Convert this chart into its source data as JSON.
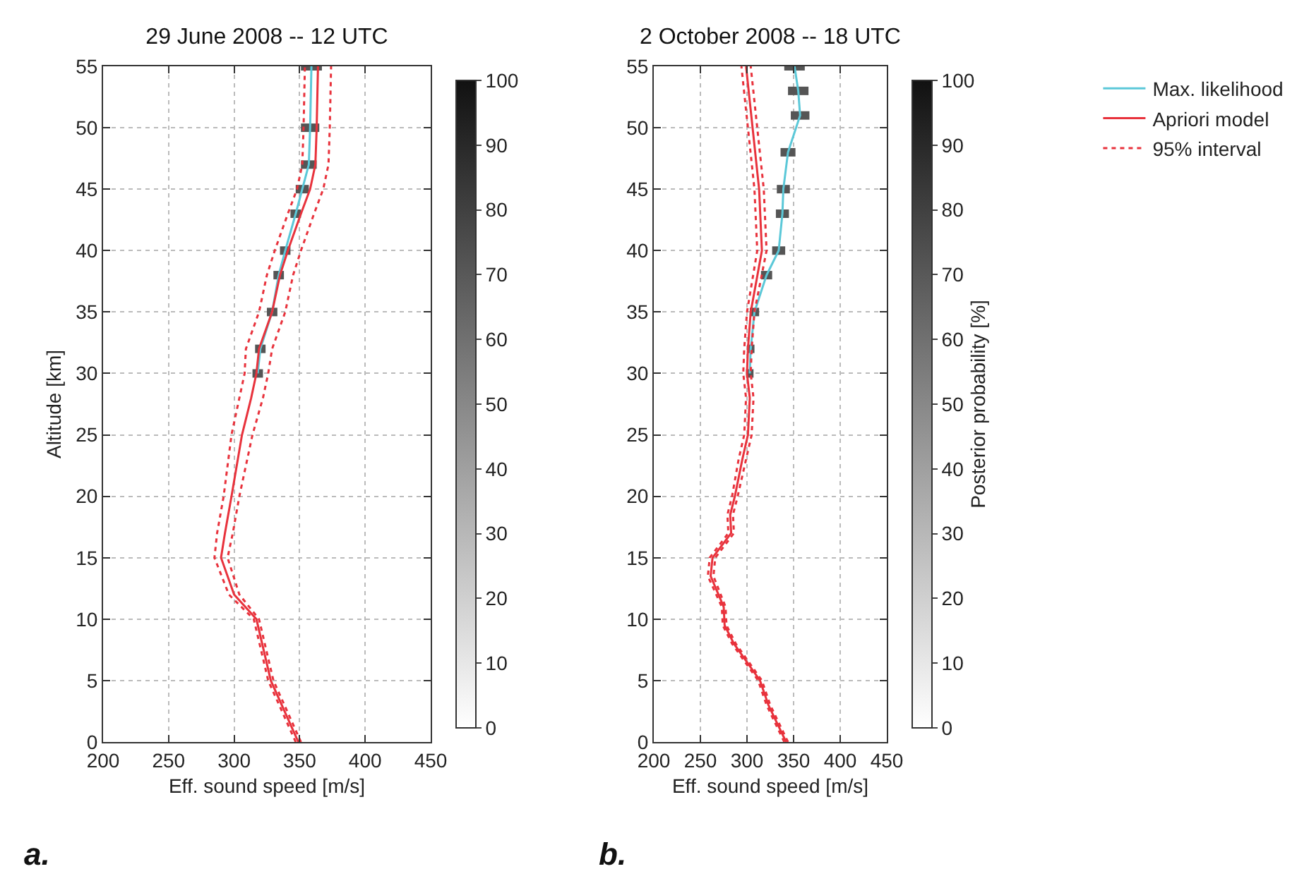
{
  "chart_data": [
    {
      "type": "line",
      "title": "29 June 2008 -- 12 UTC",
      "xlabel": "Eff. sound speed [m/s]",
      "ylabel": "Altitude [km]",
      "clim": [
        0,
        100
      ],
      "cticks": [
        0,
        10,
        20,
        30,
        40,
        50,
        60,
        70,
        80,
        90,
        100
      ],
      "xlim": [
        200,
        450
      ],
      "xticks": [
        200,
        250,
        300,
        350,
        400,
        450
      ],
      "ylim": [
        0,
        55
      ],
      "yticks": [
        0,
        5,
        10,
        15,
        20,
        25,
        30,
        35,
        40,
        45,
        50,
        55
      ],
      "grid": true,
      "legend": false,
      "annotations": [
        "a."
      ],
      "series": [
        {
          "color": "#e8323c",
          "line_style": "dotted",
          "x": [
            347,
            326,
            315,
            296,
            285,
            287,
            292,
            298,
            304,
            308,
            309,
            319,
            325,
            331,
            341,
            348,
            352,
            353,
            354
          ],
          "values": [
            0,
            5,
            10,
            12,
            15,
            17,
            20,
            25,
            28,
            30,
            32,
            35,
            38,
            40,
            43,
            45,
            47,
            50,
            55
          ]
        },
        {
          "color": "#e8323c",
          "line_style": "dotted",
          "x": [
            351,
            330,
            319,
            304,
            295,
            299,
            304,
            314,
            322,
            326,
            329,
            339,
            345,
            351,
            361,
            368,
            372,
            373,
            374
          ],
          "values": [
            0,
            5,
            10,
            12,
            15,
            17,
            20,
            25,
            28,
            30,
            32,
            35,
            38,
            40,
            43,
            45,
            47,
            50,
            55
          ]
        },
        {
          "color": "#e8323c",
          "line_style": "solid",
          "x": [
            349,
            328,
            317,
            300,
            290,
            293,
            298,
            306,
            313,
            317,
            319,
            329,
            335,
            341,
            351,
            358,
            362,
            363,
            364
          ],
          "values": [
            0,
            5,
            10,
            12,
            15,
            17,
            20,
            25,
            28,
            30,
            32,
            35,
            38,
            40,
            43,
            45,
            47,
            50,
            55
          ]
        },
        {
          "color": "#5bc8d8",
          "line_style": "solid",
          "x": [
            318,
            320,
            329,
            334,
            339,
            347,
            352,
            357,
            358,
            359
          ],
          "values": [
            30,
            32,
            35,
            38,
            40,
            43,
            45,
            47,
            50,
            55
          ],
          "xerrors": [
            [
              314,
              322
            ],
            [
              316,
              324
            ],
            [
              325,
              333
            ],
            [
              330,
              338
            ],
            [
              335,
              343
            ],
            [
              343,
              351
            ],
            [
              347,
              357
            ],
            [
              351,
              363
            ],
            [
              351,
              365
            ],
            [
              351,
              367
            ]
          ]
        }
      ]
    },
    {
      "type": "line",
      "title": "2 October 2008 -- 18 UTC",
      "xlabel": "Eff. sound speed [m/s]",
      "clabel": "Posterior probability [%]",
      "clim": [
        0,
        100
      ],
      "cticks": [
        0,
        10,
        20,
        30,
        40,
        50,
        60,
        70,
        80,
        90,
        100
      ],
      "xlim": [
        200,
        450
      ],
      "xticks": [
        200,
        250,
        300,
        350,
        400,
        450
      ],
      "ylim": [
        0,
        55
      ],
      "yticks": [
        0,
        5,
        10,
        15,
        20,
        25,
        30,
        35,
        40,
        45,
        50,
        55
      ],
      "grid": true,
      "legend": "top right",
      "annotations": [
        "b."
      ],
      "series": [
        {
          "name": "Max. likelihood",
          "color": "#5bc8d8",
          "line_style": "solid",
          "x": [
            303,
            304,
            308,
            321,
            334,
            338,
            339,
            344,
            357,
            355,
            351
          ],
          "values": [
            30,
            32,
            35,
            38,
            40,
            43,
            45,
            48,
            51,
            53,
            55
          ],
          "xerrors": [
            [
              299,
              307
            ],
            [
              300,
              308
            ],
            [
              303,
              313
            ],
            [
              315,
              327
            ],
            [
              327,
              341
            ],
            [
              331,
              345
            ],
            [
              332,
              346
            ],
            [
              336,
              352
            ],
            [
              347,
              367
            ],
            [
              344,
              366
            ],
            [
              340,
              362
            ]
          ]
        },
        {
          "name": "Apriori model",
          "color": "#e8323c",
          "line_style": "solid",
          "x": [
            342,
            323,
            314,
            286,
            276,
            275,
            261,
            263,
            283,
            282,
            287,
            295,
            301,
            303,
            300,
            301,
            304,
            316,
            313,
            306,
            299
          ],
          "values": [
            0,
            3,
            5,
            8,
            9.5,
            11,
            13.5,
            15,
            17,
            18.5,
            20,
            23,
            25,
            28,
            30,
            32,
            35,
            40,
            45,
            50,
            55
          ]
        },
        {
          "name": "95% interval",
          "color": "#e8323c",
          "line_style": "dotted",
          "x": [
            340,
            321,
            312,
            284,
            274,
            273,
            258,
            260,
            280,
            279,
            284,
            291,
            297,
            299,
            296,
            297,
            300,
            311,
            308,
            301,
            294
          ],
          "values": [
            0,
            3,
            5,
            8,
            9.5,
            11,
            13.5,
            15,
            17,
            18.5,
            20,
            23,
            25,
            28,
            30,
            32,
            35,
            40,
            45,
            50,
            55
          ]
        },
        {
          "color": "#e8323c",
          "line_style": "dotted",
          "x": [
            344,
            325,
            316,
            288,
            278,
            277,
            264,
            266,
            286,
            285,
            290,
            299,
            305,
            307,
            304,
            305,
            308,
            321,
            318,
            311,
            304
          ],
          "values": [
            0,
            3,
            5,
            8,
            9.5,
            11,
            13.5,
            15,
            17,
            18.5,
            20,
            23,
            25,
            28,
            30,
            32,
            35,
            40,
            45,
            50,
            55
          ]
        }
      ]
    }
  ]
}
